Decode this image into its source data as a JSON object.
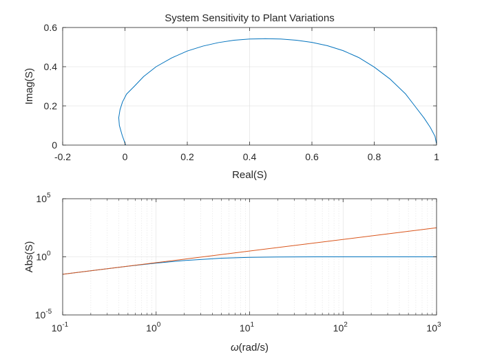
{
  "chart_data": [
    {
      "type": "line",
      "title": "System Sensitivity to Plant Variations",
      "xlabel": "Real(S)",
      "ylabel": "Imag(S)",
      "xlim": [
        -0.2,
        1
      ],
      "ylim": [
        0,
        0.6
      ],
      "grid": true,
      "x_ticks": [
        {
          "value": -0.2,
          "label": "-0.2"
        },
        {
          "value": 0,
          "label": "0"
        },
        {
          "value": 0.2,
          "label": "0.2"
        },
        {
          "value": 0.4,
          "label": "0.4"
        },
        {
          "value": 0.6,
          "label": "0.6"
        },
        {
          "value": 0.8,
          "label": "0.8"
        },
        {
          "value": 1,
          "label": "1"
        }
      ],
      "y_ticks": [
        {
          "value": 0,
          "label": "0"
        },
        {
          "value": 0.2,
          "label": "0.2"
        },
        {
          "value": 0.4,
          "label": "0.4"
        },
        {
          "value": 0.6,
          "label": "0.6"
        }
      ],
      "series": [
        {
          "color": "#0072bd",
          "x": [
            0.002,
            0.0,
            -0.009,
            -0.018,
            -0.02,
            -0.016,
            -0.008,
            0.005,
            0.03,
            0.06,
            0.1,
            0.15,
            0.2,
            0.25,
            0.3,
            0.35,
            0.4,
            0.45,
            0.5,
            0.55,
            0.6,
            0.65,
            0.7,
            0.75,
            0.8,
            0.85,
            0.9,
            0.93,
            0.96,
            0.98,
            0.995,
            1.0
          ],
          "y": [
            0.0,
            0.01,
            0.05,
            0.1,
            0.14,
            0.18,
            0.22,
            0.26,
            0.3,
            0.35,
            0.4,
            0.445,
            0.48,
            0.505,
            0.523,
            0.535,
            0.541,
            0.543,
            0.541,
            0.535,
            0.524,
            0.507,
            0.482,
            0.447,
            0.398,
            0.338,
            0.262,
            0.2,
            0.138,
            0.09,
            0.045,
            0.005
          ]
        }
      ]
    },
    {
      "type": "line",
      "title": "",
      "xlabel_symbol": "ω",
      "xlabel_text": "(rad/s)",
      "ylabel": "Abs(S)",
      "x_scale": "log",
      "y_scale": "log",
      "xlim": [
        0.1,
        1000
      ],
      "ylim": [
        1e-05,
        100000
      ],
      "grid": true,
      "x_ticks": [
        {
          "value": 0.1,
          "base": "10",
          "exp": "-1"
        },
        {
          "value": 1,
          "base": "10",
          "exp": "0"
        },
        {
          "value": 10,
          "base": "10",
          "exp": "1"
        },
        {
          "value": 100,
          "base": "10",
          "exp": "2"
        },
        {
          "value": 1000,
          "base": "10",
          "exp": "3"
        }
      ],
      "y_ticks": [
        {
          "value": 1e-05,
          "base": "10",
          "exp": "-5"
        },
        {
          "value": 1,
          "base": "10",
          "exp": "0"
        },
        {
          "value": 100000,
          "base": "10",
          "exp": "5"
        }
      ],
      "series": [
        {
          "color": "#0072bd",
          "x": [
            0.1,
            0.2,
            0.5,
            1,
            2,
            5,
            10,
            20,
            50,
            100,
            200,
            500,
            1000
          ],
          "y": [
            0.0316,
            0.063,
            0.155,
            0.29,
            0.48,
            0.76,
            0.9,
            0.97,
            0.995,
            1.0,
            1.0,
            1.0,
            1.0
          ]
        },
        {
          "color": "#d95319",
          "x": [
            0.1,
            1000
          ],
          "y": [
            0.0316,
            316
          ]
        }
      ]
    }
  ]
}
